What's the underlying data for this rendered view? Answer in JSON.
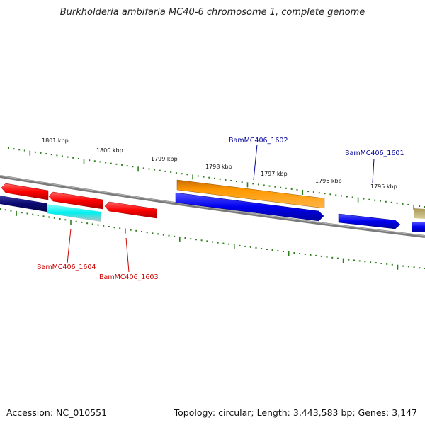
{
  "title": "Burkholderia ambifaria MC40-6 chromosome 1, complete genome",
  "footer": {
    "accession": "Accession: NC_010551",
    "stats": "Topology: circular; Length: 3,443,583 bp; Genes: 3,147"
  },
  "colors": {
    "backbone": "#808080",
    "tick": "#2d7d1d",
    "label_red": "#cc0000",
    "label_blue": "#000099",
    "feature_red": "#ff0000",
    "feature_blue": "#0000ee",
    "feature_navy": "#0a0a70",
    "feature_cyan": "#00f0f0",
    "feature_orange": "#ff9900",
    "feature_olive": "#c8b878"
  },
  "ticks": [
    "1801 kbp",
    "1800 kbp",
    "1799 kbp",
    "1798 kbp",
    "1797 kbp",
    "1796 kbp",
    "1795 kbp"
  ],
  "genes": [
    {
      "label": "BamMC406_1602",
      "color": "blue"
    },
    {
      "label": "BamMC406_1601",
      "color": "blue"
    },
    {
      "label": "BamMC406_1604",
      "color": "red"
    },
    {
      "label": "BamMC406_1603",
      "color": "red"
    }
  ]
}
